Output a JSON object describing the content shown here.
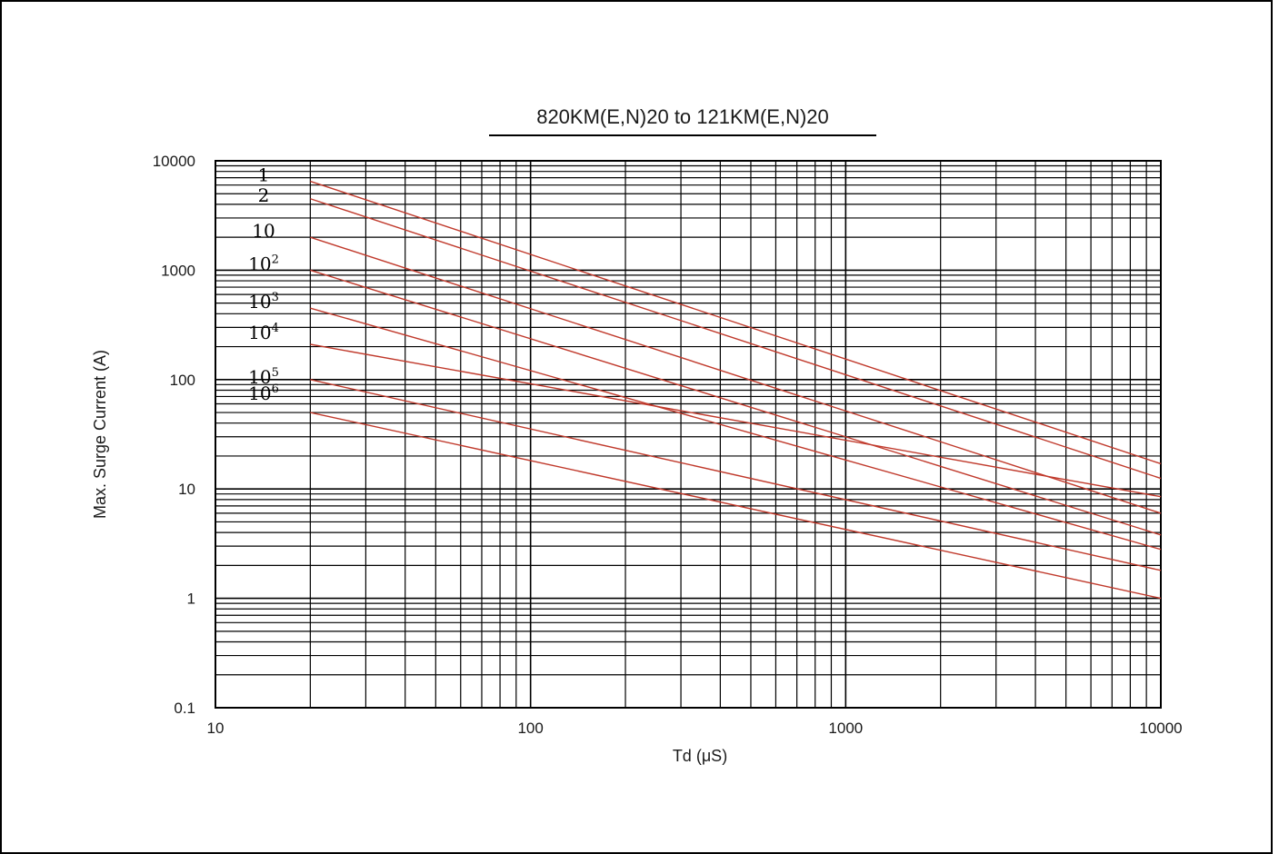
{
  "chart_data": {
    "type": "line",
    "title": "820KM(E,N)20  to 121KM(E,N)20",
    "xlabel": "Td (μS)",
    "ylabel": "Max. Surge Current (A)",
    "x_scale": "log",
    "y_scale": "log",
    "xlim": [
      10,
      10000
    ],
    "ylim": [
      0.1,
      10000
    ],
    "x_ticks": [
      "10",
      "100",
      "1000",
      "10000"
    ],
    "y_ticks": [
      "10000",
      "1000",
      "100",
      "10",
      "1",
      "0.1"
    ],
    "grid": true,
    "line_color": "#c0392b",
    "series": [
      {
        "name": "1",
        "x": [
          20,
          10000
        ],
        "y": [
          6500,
          17
        ]
      },
      {
        "name": "2",
        "x": [
          20,
          10000
        ],
        "y": [
          4500,
          12.5
        ]
      },
      {
        "name": "10",
        "x": [
          20,
          10000
        ],
        "y": [
          2000,
          6
        ]
      },
      {
        "name": "10^2",
        "x": [
          20,
          10000
        ],
        "y": [
          1000,
          3.8
        ]
      },
      {
        "name": "10^3",
        "x": [
          20,
          10000
        ],
        "y": [
          450,
          2.8
        ]
      },
      {
        "name": "10^4",
        "x": [
          20,
          10000
        ],
        "y": [
          210,
          8.5
        ]
      },
      {
        "name": "10^5",
        "x": [
          20,
          10000
        ],
        "y": [
          100,
          1.8
        ]
      },
      {
        "name": "10^6",
        "x": [
          20,
          10000
        ],
        "y": [
          50,
          1
        ]
      }
    ]
  }
}
